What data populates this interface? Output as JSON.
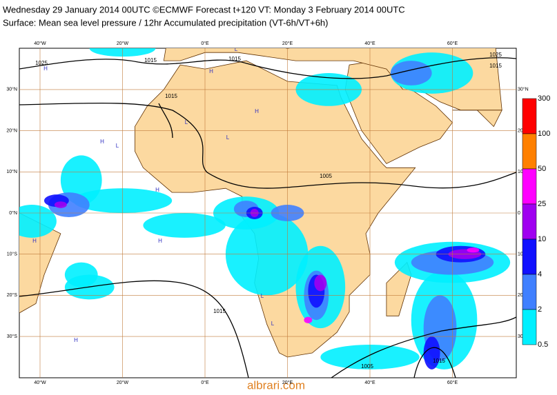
{
  "header": {
    "line1": "Wednesday 29 January 2014 00UTC ©ECMWF Forecast t+120 VT: Monday 3 February 2014 00UTC",
    "line2": "Surface: Mean sea level pressure / 12hr Accumulated precipitation (VT-6h/VT+6h)"
  },
  "map": {
    "lon_labels": [
      "40°W",
      "20°W",
      "0°E",
      "20°E",
      "40°E",
      "60°E"
    ],
    "lat_labels_left": [
      "30°N",
      "20°N",
      "10°N",
      "0°N",
      "10°S",
      "20°S",
      "30°S"
    ],
    "lat_labels_right": [
      "30°N",
      "20",
      "10",
      "0",
      "10",
      "20",
      "30"
    ],
    "isobar_labels": [
      "1025",
      "1015",
      "1015",
      "1015",
      "1005",
      "1015",
      "1005",
      "1015",
      "1025",
      "1015"
    ],
    "centers": [
      "H",
      "H",
      "L",
      "H",
      "L",
      "H",
      "L",
      "H",
      "H",
      "L",
      "H",
      "L",
      "H",
      "L"
    ]
  },
  "colorbar": {
    "labels": [
      "300",
      "100",
      "50",
      "25",
      "10",
      "4",
      "2",
      "0.5"
    ],
    "colors": [
      "#ff0000",
      "#ff8000",
      "#ff00ff",
      "#a000f0",
      "#1010ff",
      "#4080ff",
      "#00f0ff"
    ]
  },
  "watermark": "albrari.com"
}
